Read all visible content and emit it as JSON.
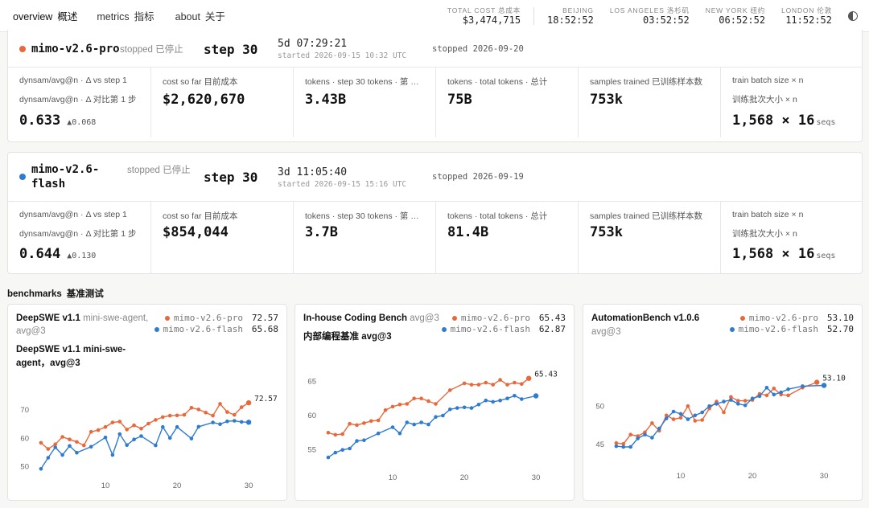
{
  "nav": {
    "items": [
      {
        "en": "overview",
        "zh": "概述"
      },
      {
        "en": "metrics",
        "zh": "指标"
      },
      {
        "en": "about",
        "zh": "关于"
      }
    ]
  },
  "header_stats": {
    "total_cost": {
      "label": "TOTAL COST  总成本",
      "value": "$3,474,715"
    },
    "clocks": [
      {
        "label": "BEIJING",
        "value": "18:52:52"
      },
      {
        "label": "LOS ANGELES  洛杉矶",
        "value": "03:52:52"
      },
      {
        "label": "NEW YORK  纽约",
        "value": "06:52:52"
      },
      {
        "label": "LONDON  伦敦",
        "value": "11:52:52"
      }
    ]
  },
  "runs": [
    {
      "color": "#e8683b",
      "name": "mimo-v2.6-pro",
      "status": "stopped  已停止",
      "step": "step 30",
      "duration": "5d 07:29:21",
      "started": "started 2026-09-15 10:32 UTC",
      "stopped": "stopped 2026-09-20",
      "metrics": {
        "dynsam": {
          "label1": "dynsam/avg@n · Δ vs step 1",
          "label2": "dynsam/avg@n · Δ 对比第 1 步",
          "value": "0.633",
          "delta": "▲0.068"
        },
        "cost": {
          "label": "cost so far  目前成本",
          "value": "$2,620,670"
        },
        "tokens_step": {
          "label": "tokens · step 30  tokens · 第 …",
          "value": "3.43B"
        },
        "tokens_total": {
          "label": "tokens · total  tokens · 总计",
          "value": "75B"
        },
        "samples": {
          "label": "samples trained  已训练样本数",
          "value": "753k"
        },
        "batch": {
          "label1": "train batch size × n",
          "label2": "训练批次大小 × n",
          "value": "1,568 × 16",
          "unit": "seqs"
        }
      }
    },
    {
      "color": "#2f7bd0",
      "name": "mimo-v2.6-flash",
      "status": "stopped  已停止",
      "step": "step 30",
      "duration": "3d 11:05:40",
      "started": "started 2026-09-15 15:16 UTC",
      "stopped": "stopped 2026-09-19",
      "metrics": {
        "dynsam": {
          "label1": "dynsam/avg@n · Δ vs step 1",
          "label2": "dynsam/avg@n · Δ 对比第 1 步",
          "value": "0.644",
          "delta": "▲0.130"
        },
        "cost": {
          "label": "cost so far  目前成本",
          "value": "$854,044"
        },
        "tokens_step": {
          "label": "tokens · step 30  tokens · 第 …",
          "value": "3.7B"
        },
        "tokens_total": {
          "label": "tokens · total  tokens · 总计",
          "value": "81.4B"
        },
        "samples": {
          "label": "samples trained  已训练样本数",
          "value": "753k"
        },
        "batch": {
          "label1": "train batch size × n",
          "label2": "训练批次大小 × n",
          "value": "1,568 × 16",
          "unit": "seqs"
        }
      }
    }
  ],
  "benchmarks": {
    "title_en": "benchmarks",
    "title_zh": "基准测试",
    "panels": [
      {
        "title_bold": "DeepSWE v1.1",
        "title_rest": " mini-swe-agent, avg@3",
        "subtitle": "DeepSWE v1.1 mini-swe-agent，avg@3",
        "legend": [
          {
            "name": "mimo-v2.6-pro",
            "value": "72.57",
            "color": "#e8683b"
          },
          {
            "name": "mimo-v2.6-flash",
            "value": "65.68",
            "color": "#2f7bd0"
          }
        ],
        "end_label": "72.57"
      },
      {
        "title_bold": "In-house Coding Bench",
        "title_rest": "  avg@3",
        "subtitle": "内部编程基准 avg@3",
        "legend": [
          {
            "name": "mimo-v2.6-pro",
            "value": "65.43",
            "color": "#e8683b"
          },
          {
            "name": "mimo-v2.6-flash",
            "value": "62.87",
            "color": "#2f7bd0"
          }
        ],
        "end_label": "65.43"
      },
      {
        "title_bold": "AutomationBench v1.0.6",
        "title_rest": "",
        "subtitle": "avg@3",
        "legend": [
          {
            "name": "mimo-v2.6-pro",
            "value": "53.10",
            "color": "#e8683b"
          },
          {
            "name": "mimo-v2.6-flash",
            "value": "52.70",
            "color": "#2f7bd0"
          }
        ],
        "end_label": "53.10"
      }
    ]
  },
  "chart_data": [
    {
      "type": "line",
      "title": "DeepSWE v1.1 mini-swe-agent, avg@3",
      "xticks": [
        10,
        20,
        30
      ],
      "yticks": [
        50,
        60,
        70
      ],
      "xlim": [
        0,
        31
      ],
      "ylim": [
        47,
        76
      ],
      "x": [
        1,
        2,
        3,
        4,
        5,
        6,
        7,
        8,
        9,
        10,
        11,
        12,
        13,
        14,
        15,
        16,
        17,
        18,
        19,
        20,
        21,
        22,
        23,
        24,
        25,
        26,
        27,
        28,
        29,
        30
      ],
      "series": [
        {
          "name": "mimo-v2.6-pro",
          "color": "#e8683b",
          "values": [
            58.4,
            56.2,
            57.9,
            60.5,
            59.6,
            58.7,
            57.5,
            62.3,
            62.9,
            64.0,
            65.6,
            65.9,
            63.1,
            64.6,
            63.4,
            65.2,
            66.5,
            67.5,
            68.0,
            68.1,
            68.3,
            70.8,
            70.2,
            69.1,
            68.0,
            72.2,
            69.3,
            68.3,
            71.0,
            72.57
          ]
        },
        {
          "name": "mimo-v2.6-flash",
          "color": "#2f7bd0",
          "values": [
            49.2,
            53.1,
            56.8,
            54.1,
            57.3,
            54.9,
            null,
            57.0,
            null,
            60.3,
            54.1,
            61.5,
            57.6,
            59.6,
            60.8,
            null,
            57.5,
            64.0,
            60.1,
            64.0,
            null,
            59.9,
            64.1,
            null,
            65.6,
            65.0,
            66.0,
            66.2,
            65.8,
            65.68
          ]
        }
      ]
    },
    {
      "type": "line",
      "title": "In-house Coding Bench avg@3",
      "xticks": [
        10,
        20,
        30
      ],
      "yticks": [
        55,
        60,
        65
      ],
      "xlim": [
        0,
        31
      ],
      "ylim": [
        52.5,
        67.5
      ],
      "x": [
        1,
        2,
        3,
        4,
        5,
        6,
        7,
        8,
        9,
        10,
        11,
        12,
        13,
        14,
        15,
        16,
        17,
        18,
        19,
        20,
        21,
        22,
        23,
        24,
        25,
        26,
        27,
        28,
        29,
        30
      ],
      "series": [
        {
          "name": "mimo-v2.6-pro",
          "color": "#e8683b",
          "values": [
            57.5,
            57.2,
            57.3,
            58.8,
            58.6,
            58.9,
            59.2,
            59.3,
            60.8,
            61.3,
            61.6,
            61.7,
            62.5,
            62.5,
            62.1,
            61.7,
            null,
            63.7,
            null,
            64.7,
            64.5,
            64.5,
            64.8,
            64.5,
            65.2,
            64.5,
            64.8,
            64.6,
            65.43,
            null
          ]
        },
        {
          "name": "mimo-v2.6-flash",
          "color": "#2f7bd0",
          "values": [
            53.9,
            54.6,
            55.0,
            55.2,
            56.3,
            56.4,
            null,
            57.4,
            null,
            58.3,
            57.4,
            59.0,
            58.7,
            59.0,
            58.7,
            59.8,
            60.0,
            60.9,
            61.1,
            61.2,
            61.1,
            61.6,
            62.2,
            62.0,
            62.2,
            62.5,
            62.9,
            62.4,
            null,
            62.87
          ]
        }
      ]
    },
    {
      "type": "line",
      "title": "AutomationBench v1.0.6 avg@3",
      "xticks": [
        10,
        20,
        30
      ],
      "yticks": [
        45,
        50
      ],
      "xlim": [
        0,
        31
      ],
      "ylim": [
        42.3,
        56.3
      ],
      "x": [
        1,
        2,
        3,
        4,
        5,
        6,
        7,
        8,
        9,
        10,
        11,
        12,
        13,
        14,
        15,
        16,
        17,
        18,
        19,
        20,
        21,
        22,
        23,
        24,
        25,
        26,
        27,
        28,
        29,
        30
      ],
      "series": [
        {
          "name": "mimo-v2.6-pro",
          "color": "#e8683b",
          "values": [
            45.2,
            45.1,
            46.3,
            46.1,
            46.6,
            47.8,
            46.8,
            48.8,
            48.3,
            48.5,
            50.0,
            48.1,
            48.2,
            49.7,
            50.6,
            49.2,
            51.2,
            50.7,
            50.7,
            50.8,
            51.6,
            51.4,
            52.3,
            51.5,
            51.4,
            null,
            52.4,
            null,
            53.1,
            null
          ]
        },
        {
          "name": "mimo-v2.6-flash",
          "color": "#2f7bd0",
          "values": [
            44.8,
            44.7,
            44.7,
            45.8,
            46.3,
            45.9,
            47.1,
            48.4,
            49.3,
            49.0,
            48.3,
            48.8,
            49.2,
            50.0,
            50.3,
            50.6,
            50.8,
            50.3,
            50.1,
            51.0,
            51.3,
            52.4,
            51.5,
            51.8,
            52.2,
            null,
            52.6,
            null,
            null,
            52.7
          ]
        }
      ]
    }
  ]
}
